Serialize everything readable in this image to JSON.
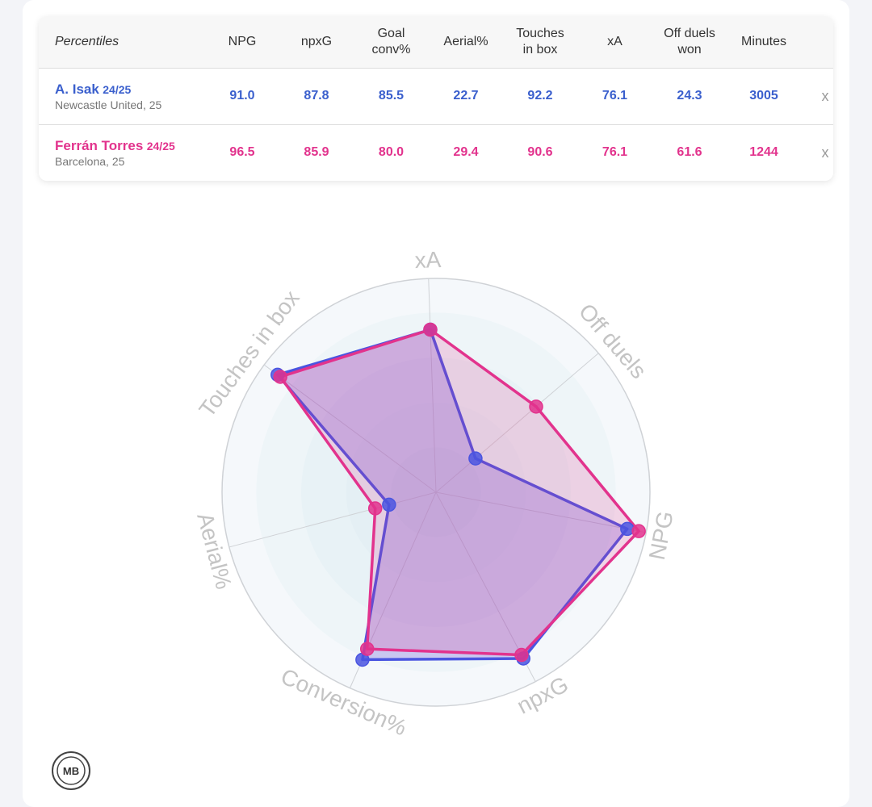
{
  "table": {
    "header": [
      "Percentiles",
      "NPG",
      "npxG",
      "Goal\nconv%",
      "Aerial%",
      "Touches\nin box",
      "xA",
      "Off duels\nwon",
      "Minutes"
    ],
    "rows": [
      {
        "name": "A. Isak",
        "season": "24/25",
        "team": "Newcastle United, 25",
        "values": [
          "91.0",
          "87.8",
          "85.5",
          "22.7",
          "92.2",
          "76.1",
          "24.3",
          "3005"
        ],
        "remove": "x"
      },
      {
        "name": "Ferrán Torres",
        "season": "24/25",
        "team": "Barcelona, 25",
        "values": [
          "96.5",
          "85.9",
          "80.0",
          "29.4",
          "90.6",
          "76.1",
          "61.6",
          "1244"
        ],
        "remove": "x"
      }
    ]
  },
  "colors": {
    "player1": "#4a55e0",
    "player2": "#e2338d",
    "player1_text": "#3a5fcd",
    "player2_text": "#e2338d"
  },
  "chart_data": {
    "type": "radar",
    "axes": [
      "xA",
      "Off duels",
      "NPG",
      "npxG",
      "Conversion%",
      "Aerial%",
      "Touches in box"
    ],
    "range": [
      0,
      100
    ],
    "series": [
      {
        "name": "A. Isak",
        "values": [
          76.1,
          24.3,
          91.0,
          87.8,
          85.5,
          22.7,
          92.2
        ]
      },
      {
        "name": "Ferrán Torres",
        "values": [
          76.1,
          61.6,
          96.5,
          85.9,
          80.0,
          29.4,
          90.6
        ]
      }
    ]
  },
  "logo": {
    "text": "MB"
  }
}
